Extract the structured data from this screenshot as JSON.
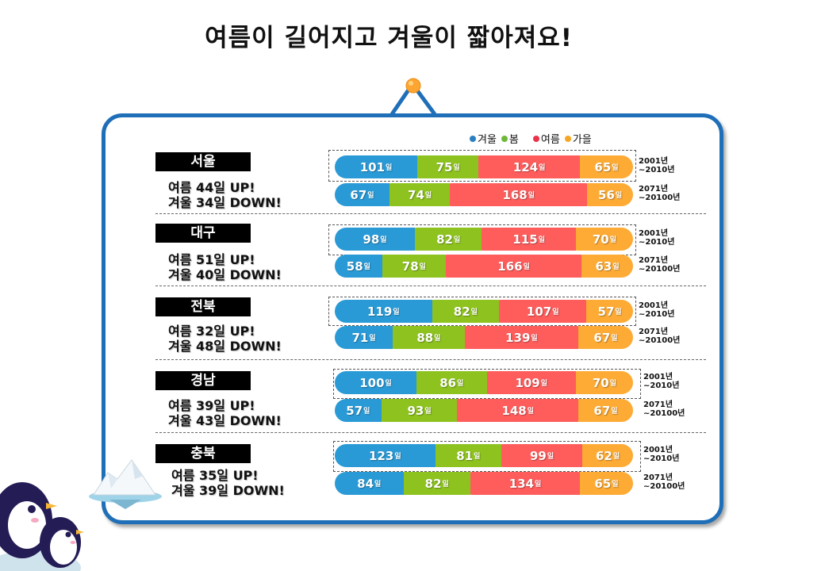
{
  "title": "여름이 길어지고 겨울이 짧아져요!",
  "legend": {
    "winter": "겨울",
    "spring": "봄",
    "summer": "여름",
    "autumn": "가을"
  },
  "colors": {
    "winter": "#2a9ad6",
    "spring": "#8dc21f",
    "summer": "#ff5c5c",
    "autumn": "#fdab35",
    "board": "#1f6fb8"
  },
  "unit": "일",
  "regions": [
    {
      "name": "서울",
      "summer_line": "여름 44일 UP!",
      "winter_line": "겨울 34일 DOWN!",
      "rows": [
        {
          "p1": "2001년",
          "p2": "~2010년",
          "values": [
            101,
            75,
            124,
            65
          ]
        },
        {
          "p1": "2071년",
          "p2": "~20100년",
          "values": [
            67,
            74,
            168,
            56
          ]
        }
      ]
    },
    {
      "name": "대구",
      "summer_line": "여름 51일 UP!",
      "winter_line": "겨울 40일 DOWN!",
      "rows": [
        {
          "p1": "2001년",
          "p2": "~2010년",
          "values": [
            98,
            82,
            115,
            70
          ]
        },
        {
          "p1": "2071년",
          "p2": "~20100년",
          "values": [
            58,
            78,
            166,
            63
          ]
        }
      ]
    },
    {
      "name": "전북",
      "summer_line": "여름 32일 UP!",
      "winter_line": "겨울 48일 DOWN!",
      "rows": [
        {
          "p1": "2001년",
          "p2": "~2010년",
          "values": [
            119,
            82,
            107,
            57
          ]
        },
        {
          "p1": "2071년",
          "p2": "~20100년",
          "values": [
            71,
            88,
            139,
            67
          ]
        }
      ]
    },
    {
      "name": "경남",
      "summer_line": "여름 39일 UP!",
      "winter_line": "겨울 43일 DOWN!",
      "rows": [
        {
          "p1": "2001년",
          "p2": "~2010년",
          "values": [
            100,
            86,
            109,
            70
          ]
        },
        {
          "p1": "2071년",
          "p2": "~20100년",
          "values": [
            57,
            93,
            148,
            67
          ]
        }
      ]
    },
    {
      "name": "충북",
      "summer_line": "여름 35일 UP!",
      "winter_line": "겨울 39일 DOWN!",
      "rows": [
        {
          "p1": "2001년",
          "p2": "~2010년",
          "values": [
            123,
            81,
            99,
            62
          ]
        },
        {
          "p1": "2071년",
          "p2": "~20100년",
          "values": [
            84,
            82,
            134,
            65
          ]
        }
      ]
    }
  ]
}
